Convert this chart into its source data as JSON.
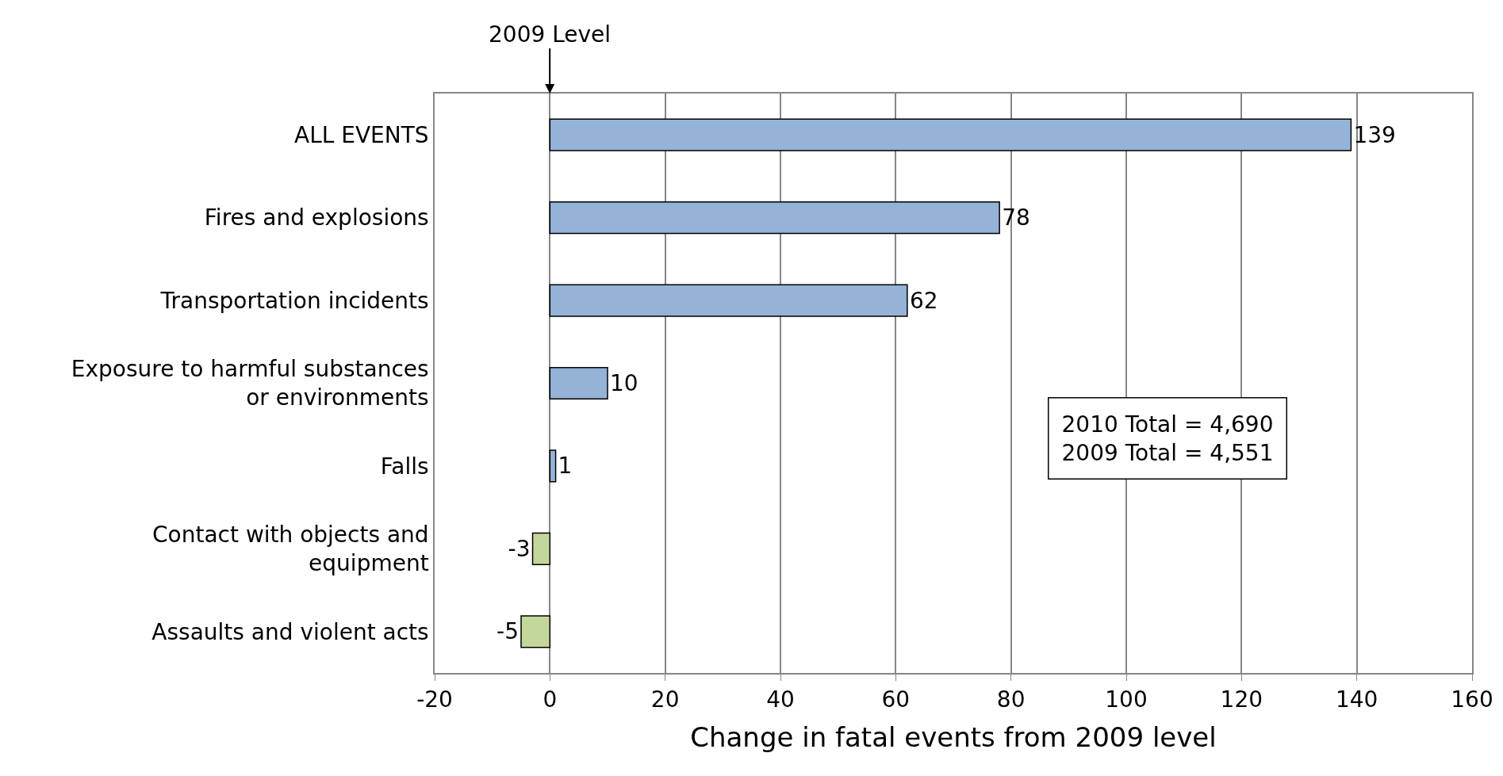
{
  "chart_data": {
    "type": "bar",
    "orientation": "horizontal",
    "categories": [
      "ALL EVENTS",
      "Fires and explosions",
      "Transportation incidents",
      "Exposure to harmful substances or environments",
      "Falls",
      "Contact with objects and equipment",
      "Assaults and violent acts"
    ],
    "values": [
      139,
      78,
      62,
      10,
      1,
      -3,
      -5
    ],
    "colors": [
      "#95b3d7",
      "#95b3d7",
      "#95b3d7",
      "#95b3d7",
      "#95b3d7",
      "#c3d69b",
      "#c3d69b"
    ],
    "data_labels": true,
    "xlabel": "Change in fatal events from 2009 level",
    "xlim": [
      -20,
      160
    ],
    "xticks": [
      -20,
      0,
      20,
      40,
      60,
      80,
      100,
      120,
      140,
      160
    ],
    "grid": "x",
    "legend": false,
    "annotations": [
      "2009 Level",
      "2010 Total = 4,690",
      "2009 Total = 4,551"
    ]
  }
}
